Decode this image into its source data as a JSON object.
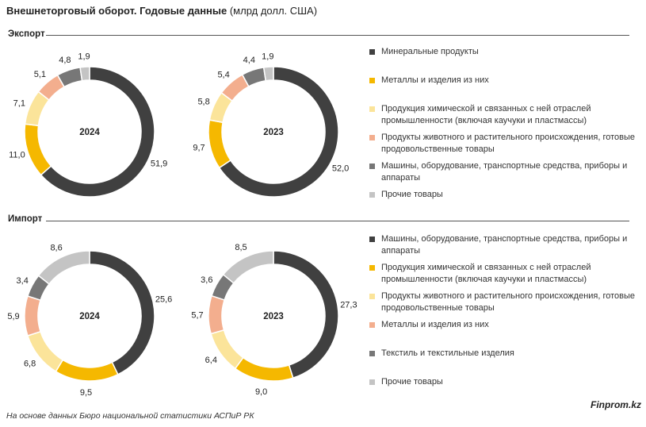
{
  "title": {
    "main": "Внешнеторговый оборот. Годовые данные",
    "unit": " (млрд долл. США)"
  },
  "source": "На основе данных Бюро национальной статистики АСПиР РК",
  "brand": "Finprom.kz",
  "sections": [
    {
      "label": "Экспорт",
      "legend": [
        {
          "label": "Минеральные продукты",
          "color": "#404040"
        },
        {
          "label": "Металлы и изделия из них",
          "color": "#F5B800"
        },
        {
          "label": "Продукция химической и связанных с ней отраслей промышленности (включая каучуки и пластмассы)",
          "color": "#FBE49A"
        },
        {
          "label": "Продукты животного и растительного происхождения, готовые продовольственные товары",
          "color": "#F3AE8E"
        },
        {
          "label": "Машины, оборудование, транспортные средства, приборы и аппараты",
          "color": "#777777"
        },
        {
          "label": "Прочие товары",
          "color": "#C4C4C4"
        }
      ]
    },
    {
      "label": "Импорт",
      "legend": [
        {
          "label": "Машины, оборудование, транспортные средства, приборы и аппараты",
          "color": "#404040"
        },
        {
          "label": "Продукция химической и связанных с ней отраслей промышленности (включая каучуки и пластмассы)",
          "color": "#F5B800"
        },
        {
          "label": "Продукты животного и растительного происхождения, готовые продовольственные товары",
          "color": "#FBE49A"
        },
        {
          "label": "Металлы и изделия из них",
          "color": "#F3AE8E"
        },
        {
          "label": "Текстиль и текстильные изделия",
          "color": "#777777"
        },
        {
          "label": "Прочие товары",
          "color": "#C4C4C4"
        }
      ]
    }
  ],
  "chart_data": [
    {
      "type": "pie",
      "section": "Экспорт",
      "center_label": "2024",
      "categories": [
        "Минеральные продукты",
        "Металлы и изделия из них",
        "Продукция химической и связанных с ней отраслей промышленности (включая каучуки и пластмассы)",
        "Продукты животного и растительного происхождения, готовые продовольственные товары",
        "Машины, оборудование, транспортные средства, приборы и аппараты",
        "Прочие товары"
      ],
      "values": [
        51.9,
        11.0,
        7.1,
        5.1,
        4.8,
        1.9
      ],
      "value_labels": [
        "51,9",
        "11,0",
        "7,1",
        "5,1",
        "4,8",
        "1,9"
      ]
    },
    {
      "type": "pie",
      "section": "Экспорт",
      "center_label": "2023",
      "categories": [
        "Минеральные продукты",
        "Металлы и изделия из них",
        "Продукция химической и связанных с ней отраслей промышленности (включая каучуки и пластмассы)",
        "Продукты животного и растительного происхождения, готовые продовольственные товары",
        "Машины, оборудование, транспортные средства, приборы и аппараты",
        "Прочие товары"
      ],
      "values": [
        52.0,
        9.7,
        5.8,
        5.4,
        4.4,
        1.9
      ],
      "value_labels": [
        "52,0",
        "9,7",
        "5,8",
        "5,4",
        "4,4",
        "1,9"
      ]
    },
    {
      "type": "pie",
      "section": "Импорт",
      "center_label": "2024",
      "categories": [
        "Машины, оборудование, транспортные средства, приборы и аппараты",
        "Продукция химической и связанных с ней отраслей промышленности (включая каучуки и пластмассы)",
        "Продукты животного и растительного происхождения, готовые продовольственные товары",
        "Металлы и изделия из них",
        "Текстиль и текстильные изделия",
        "Прочие товары"
      ],
      "values": [
        25.6,
        9.5,
        6.8,
        5.9,
        3.4,
        8.6
      ],
      "value_labels": [
        "25,6",
        "9,5",
        "6,8",
        "5,9",
        "3,4",
        "8,6"
      ]
    },
    {
      "type": "pie",
      "section": "Импорт",
      "center_label": "2023",
      "categories": [
        "Машины, оборудование, транспортные средства, приборы и аппараты",
        "Продукция химической и связанных с ней отраслей промышленности (включая каучуки и пластмассы)",
        "Продукты животного и растительного происхождения, готовые продовольственные товары",
        "Металлы и изделия из них",
        "Текстиль и текстильные изделия",
        "Прочие товары"
      ],
      "values": [
        27.3,
        9.0,
        6.4,
        5.7,
        3.6,
        8.5
      ],
      "value_labels": [
        "27,3",
        "9,0",
        "6,4",
        "5,7",
        "3,6",
        "8,5"
      ]
    }
  ]
}
